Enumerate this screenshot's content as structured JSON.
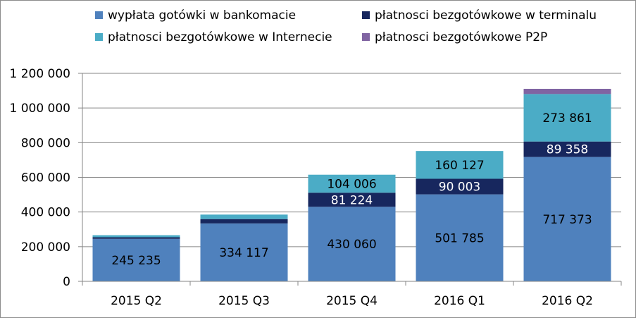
{
  "chart_data": {
    "type": "bar",
    "stacked": true,
    "categories": [
      "2015 Q2",
      "2015 Q3",
      "2015 Q4",
      "2016 Q1",
      "2016 Q2"
    ],
    "series": [
      {
        "name": "wypłata gotówki w bankomacie",
        "color": "#4f81bd",
        "values": [
          245235,
          334117,
          430060,
          501785,
          717373
        ],
        "labels": [
          "245 235",
          "334 117",
          "430 060",
          "501 785",
          "717 373"
        ]
      },
      {
        "name": "płatnosci bezgotówkowe w terminalu",
        "color": "#17275e",
        "values": [
          9000,
          25000,
          81224,
          90003,
          89358
        ],
        "labels": [
          "",
          "",
          "81 224",
          "90 003",
          "89 358"
        ]
      },
      {
        "name": "płatnosci bezgotówkowe w Internecie",
        "color": "#4bacc6",
        "values": [
          12000,
          26000,
          104006,
          160127,
          273861
        ],
        "labels": [
          "",
          "",
          "104 006",
          "160 127",
          "273 861"
        ]
      },
      {
        "name": "płatnosci bezgotówkowe P2P",
        "color": "#8064a2",
        "values": [
          0,
          0,
          0,
          0,
          30000
        ],
        "labels": [
          "",
          "",
          "",
          "",
          ""
        ]
      }
    ],
    "yticks": [
      "0",
      "200 000",
      "400 000",
      "600 000",
      "800 000",
      "1 000 000",
      "1 200 000"
    ],
    "ylim": [
      0,
      1200000
    ],
    "grid": true,
    "legend": "top"
  }
}
